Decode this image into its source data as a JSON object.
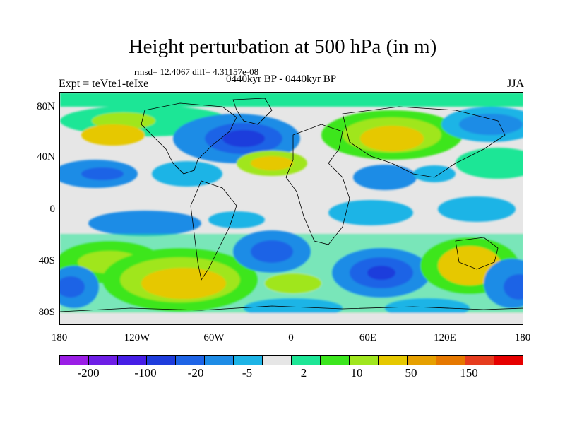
{
  "title": "Height perturbation at 500 hPa (in m)",
  "stats": "rmsd= 12.4067 diff= 4.31157e-08",
  "left_label": "Expt = teVte1-teIxe",
  "center_label": "0440kyr BP - 0440kyr BP",
  "right_label": "JJA",
  "lat_labels": [
    "80N",
    "40N",
    "0",
    "40S",
    "80S"
  ],
  "lon_labels": [
    "180",
    "120W",
    "60W",
    "0",
    "60E",
    "120E",
    "180"
  ],
  "colorbar": {
    "colors": [
      "#9b1ee6",
      "#6e1ee6",
      "#461ee6",
      "#1e3cdc",
      "#1e64e6",
      "#1e8ce6",
      "#1eb4e6",
      "#e6e6e6",
      "#1ee696",
      "#3ce61e",
      "#a0e61e",
      "#e6c800",
      "#e6a000",
      "#e67800",
      "#e63c1e",
      "#e60000"
    ],
    "tick_labels": [
      "-200",
      "-100",
      "-20",
      "-5",
      "2",
      "10",
      "50",
      "150"
    ]
  }
}
